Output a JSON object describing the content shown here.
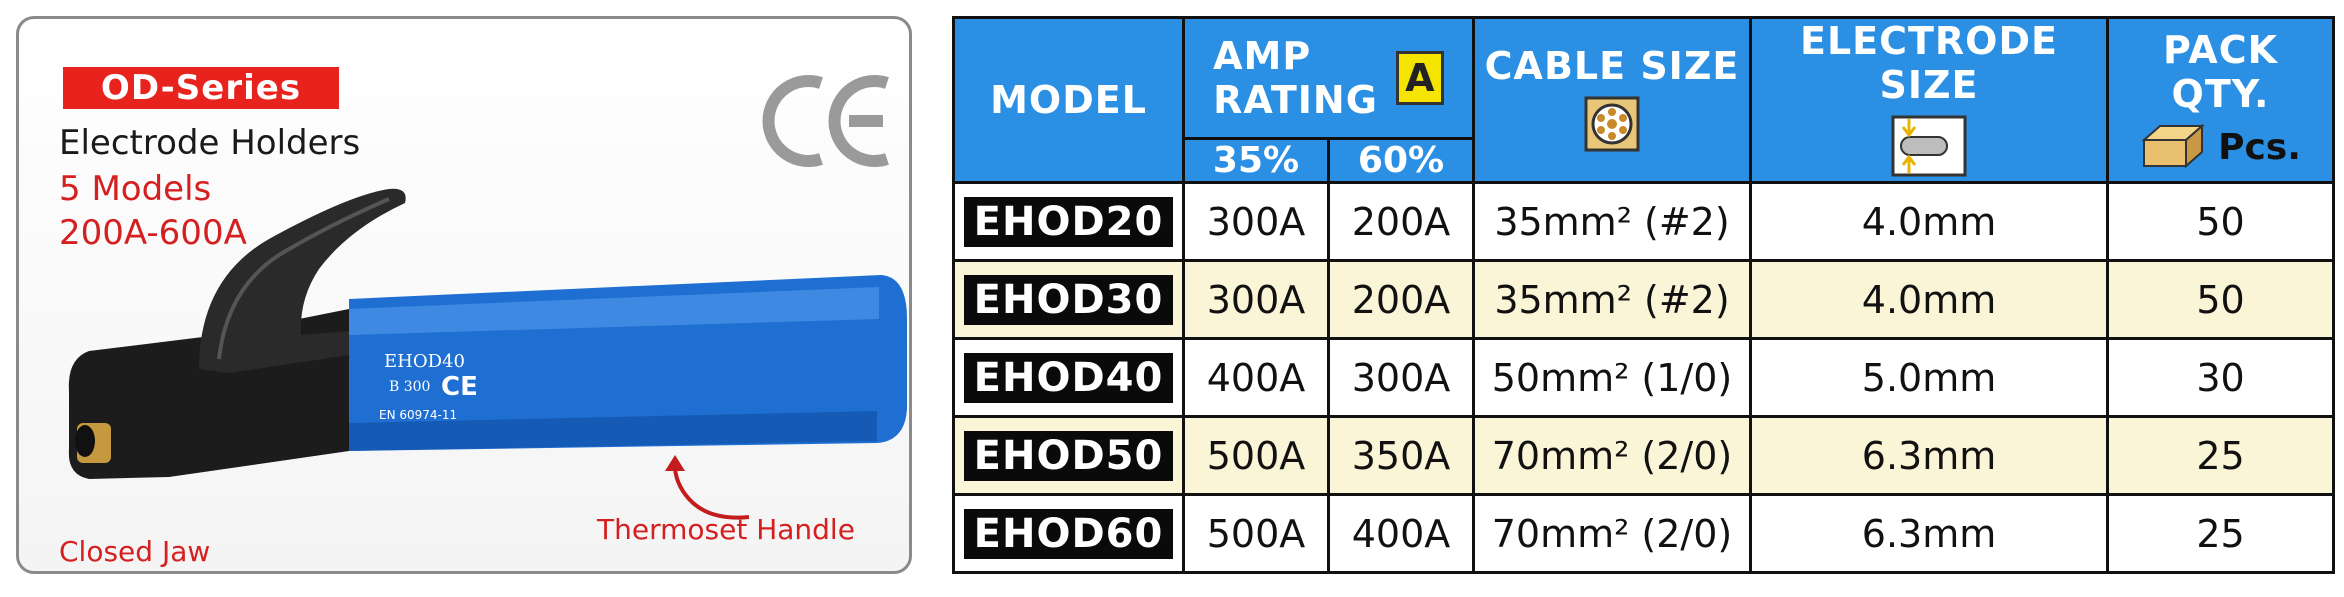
{
  "product": {
    "series": "OD-Series",
    "subtitle": "Electrode Holders",
    "models_count": "5 Models",
    "range": "200A-600A",
    "certification": "CE",
    "callouts": {
      "closed_jaw": "Closed Jaw",
      "thermoset_handle": "Thermoset Handle"
    },
    "colors": {
      "accent": "#e8231e",
      "handle": "#1e6fd1",
      "table_header": "#2b8fe3",
      "row_alt": "#fbf5d8"
    }
  },
  "table": {
    "headers": {
      "model": "MODEL",
      "amp_rating_line1": "AMP",
      "amp_rating_line2": "RATING",
      "amp_icon": "A",
      "duty_35": "35%",
      "duty_60": "60%",
      "cable_size": "CABLE SIZE",
      "electrode_size": "ELECTRODE SIZE",
      "pack_qty": "PACK QTY.",
      "pack_unit": "Pcs."
    },
    "rows": [
      {
        "model": "EHOD20",
        "amp35": "300A",
        "amp60": "200A",
        "cable": "35mm² (#2)",
        "electrode": "4.0mm",
        "pack": "50"
      },
      {
        "model": "EHOD30",
        "amp35": "300A",
        "amp60": "200A",
        "cable": "35mm² (#2)",
        "electrode": "4.0mm",
        "pack": "50"
      },
      {
        "model": "EHOD40",
        "amp35": "400A",
        "amp60": "300A",
        "cable": "50mm² (1/0)",
        "electrode": "5.0mm",
        "pack": "30"
      },
      {
        "model": "EHOD50",
        "amp35": "500A",
        "amp60": "350A",
        "cable": "70mm² (2/0)",
        "electrode": "6.3mm",
        "pack": "25"
      },
      {
        "model": "EHOD60",
        "amp35": "500A",
        "amp60": "400A",
        "cable": "70mm² (2/0)",
        "electrode": "6.3mm",
        "pack": "25"
      }
    ]
  }
}
